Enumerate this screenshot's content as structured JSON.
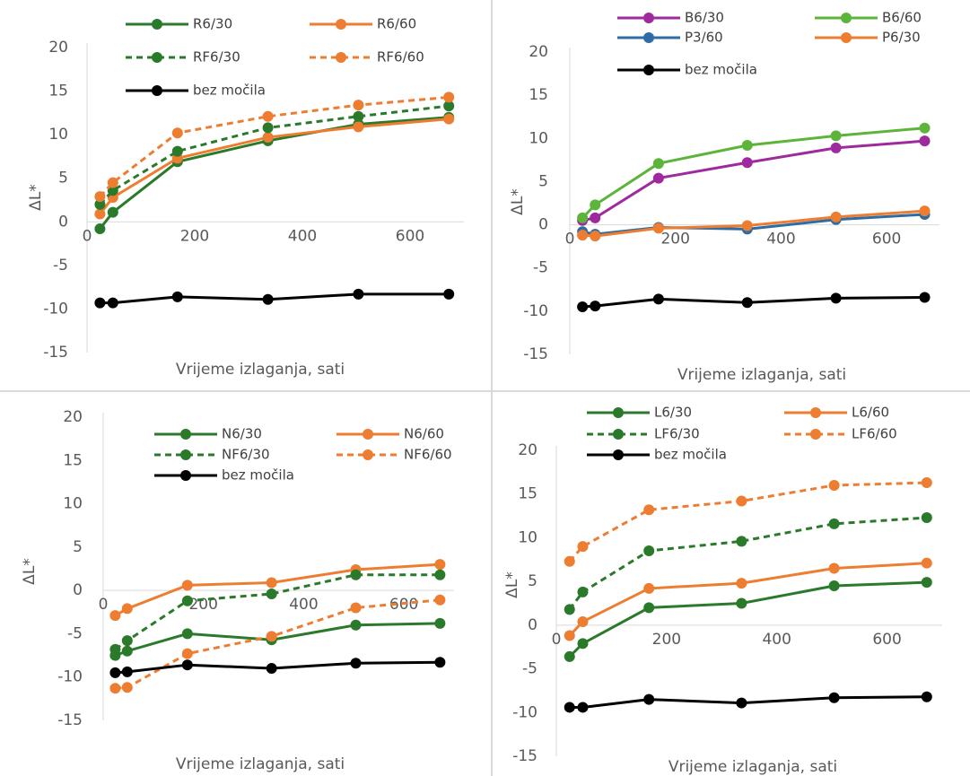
{
  "chart_data": [
    {
      "type": "line",
      "x_title": "Vrijeme izlaganja, sati",
      "y_title": "ΔL*",
      "x": [
        24,
        48,
        168,
        336,
        504,
        672
      ],
      "xlim": [
        0,
        700
      ],
      "xticks": [
        0,
        200,
        400,
        600
      ],
      "ylim": [
        -15,
        20
      ],
      "yticks": [
        -15,
        -10,
        -5,
        0,
        5,
        10,
        15,
        20
      ],
      "grid": false,
      "series": [
        {
          "name": "R6/30",
          "color": "#2b7a2b",
          "line_style": "solid",
          "values": [
            -0.8,
            1.1,
            6.9,
            9.3,
            11.2,
            12.0
          ]
        },
        {
          "name": "R6/60",
          "color": "#ed7d31",
          "line_style": "solid",
          "values": [
            0.9,
            2.8,
            7.3,
            9.7,
            10.9,
            11.8
          ]
        },
        {
          "name": "RF6/30",
          "color": "#2b7a2b",
          "line_style": "dashed",
          "values": [
            2.0,
            3.6,
            8.1,
            10.8,
            12.1,
            13.3
          ]
        },
        {
          "name": "RF6/60",
          "color": "#ed7d31",
          "line_style": "dashed",
          "values": [
            2.9,
            4.5,
            10.2,
            12.1,
            13.4,
            14.3
          ]
        },
        {
          "name": "bez močila",
          "color": "#000000",
          "line_style": "solid",
          "values": [
            -9.3,
            -9.3,
            -8.6,
            -8.9,
            -8.3,
            -8.3
          ]
        }
      ]
    },
    {
      "type": "line",
      "x_title": "Vrijeme izlaganja, sati",
      "y_title": "ΔL*",
      "x": [
        24,
        48,
        168,
        336,
        504,
        672
      ],
      "xlim": [
        0,
        700
      ],
      "xticks": [
        0,
        200,
        400,
        600
      ],
      "ylim": [
        -15,
        20
      ],
      "yticks": [
        -15,
        -10,
        -5,
        0,
        5,
        10,
        15,
        20
      ],
      "grid": false,
      "series": [
        {
          "name": "B6/30",
          "color": "#9e2a9e",
          "line_style": "solid",
          "values": [
            0.5,
            0.8,
            5.4,
            7.2,
            8.9,
            9.7
          ]
        },
        {
          "name": "B6/60",
          "color": "#5cb43a",
          "line_style": "solid",
          "values": [
            0.8,
            2.3,
            7.1,
            9.2,
            10.3,
            11.2
          ]
        },
        {
          "name": "P3/60",
          "color": "#2e6da4",
          "line_style": "solid",
          "values": [
            -0.8,
            -1.1,
            -0.3,
            -0.5,
            0.6,
            1.2
          ]
        },
        {
          "name": "P6/30",
          "color": "#ed7d31",
          "line_style": "solid",
          "values": [
            -1.2,
            -1.3,
            -0.4,
            -0.1,
            0.9,
            1.6
          ]
        },
        {
          "name": "bez močila",
          "color": "#000000",
          "line_style": "solid",
          "values": [
            -9.5,
            -9.4,
            -8.6,
            -9.0,
            -8.5,
            -8.4
          ]
        }
      ]
    },
    {
      "type": "line",
      "x_title": "Vrijeme izlaganja, sati",
      "y_title": "ΔL*",
      "x": [
        24,
        48,
        168,
        336,
        504,
        672
      ],
      "xlim": [
        0,
        700
      ],
      "xticks": [
        0,
        200,
        400,
        600
      ],
      "ylim": [
        -15,
        20
      ],
      "yticks": [
        -15,
        -10,
        -5,
        0,
        5,
        10,
        15,
        20
      ],
      "grid": false,
      "series": [
        {
          "name": "N6/30",
          "color": "#2b7a2b",
          "line_style": "solid",
          "values": [
            -7.5,
            -7.0,
            -5.0,
            -5.7,
            -4.0,
            -3.8
          ]
        },
        {
          "name": "N6/60",
          "color": "#ed7d31",
          "line_style": "solid",
          "values": [
            -2.9,
            -2.1,
            0.6,
            0.9,
            2.4,
            3.0
          ]
        },
        {
          "name": "NF6/30",
          "color": "#2b7a2b",
          "line_style": "dashed",
          "values": [
            -6.8,
            -5.8,
            -1.2,
            -0.4,
            1.8,
            1.8
          ]
        },
        {
          "name": "NF6/60",
          "color": "#ed7d31",
          "line_style": "dashed",
          "values": [
            -11.3,
            -11.2,
            -7.3,
            -5.3,
            -2.0,
            -1.1
          ]
        },
        {
          "name": "bez močila",
          "color": "#000000",
          "line_style": "solid",
          "values": [
            -9.5,
            -9.4,
            -8.6,
            -9.0,
            -8.4,
            -8.3
          ]
        }
      ]
    },
    {
      "type": "line",
      "x_title": "Vrijeme izlaganja, sati",
      "y_title": "ΔL*",
      "x": [
        24,
        48,
        168,
        336,
        504,
        672
      ],
      "xlim": [
        0,
        700
      ],
      "xticks": [
        0,
        200,
        400,
        600
      ],
      "ylim": [
        -15,
        20
      ],
      "yticks": [
        -15,
        -10,
        -5,
        0,
        5,
        10,
        15,
        20
      ],
      "grid": false,
      "series": [
        {
          "name": "L6/30",
          "color": "#2b7a2b",
          "line_style": "solid",
          "values": [
            -3.6,
            -2.1,
            2.0,
            2.5,
            4.5,
            4.9
          ]
        },
        {
          "name": "L6/60",
          "color": "#ed7d31",
          "line_style": "solid",
          "values": [
            -1.2,
            0.4,
            4.2,
            4.8,
            6.5,
            7.1
          ]
        },
        {
          "name": "LF6/30",
          "color": "#2b7a2b",
          "line_style": "dashed",
          "values": [
            1.8,
            3.8,
            8.5,
            9.6,
            11.6,
            12.3
          ]
        },
        {
          "name": "LF6/60",
          "color": "#ed7d31",
          "line_style": "dashed",
          "values": [
            7.3,
            9.0,
            13.2,
            14.2,
            16.0,
            16.3
          ]
        },
        {
          "name": "bez močila",
          "color": "#000000",
          "line_style": "solid",
          "values": [
            -9.4,
            -9.4,
            -8.5,
            -8.9,
            -8.3,
            -8.2
          ]
        }
      ]
    }
  ]
}
